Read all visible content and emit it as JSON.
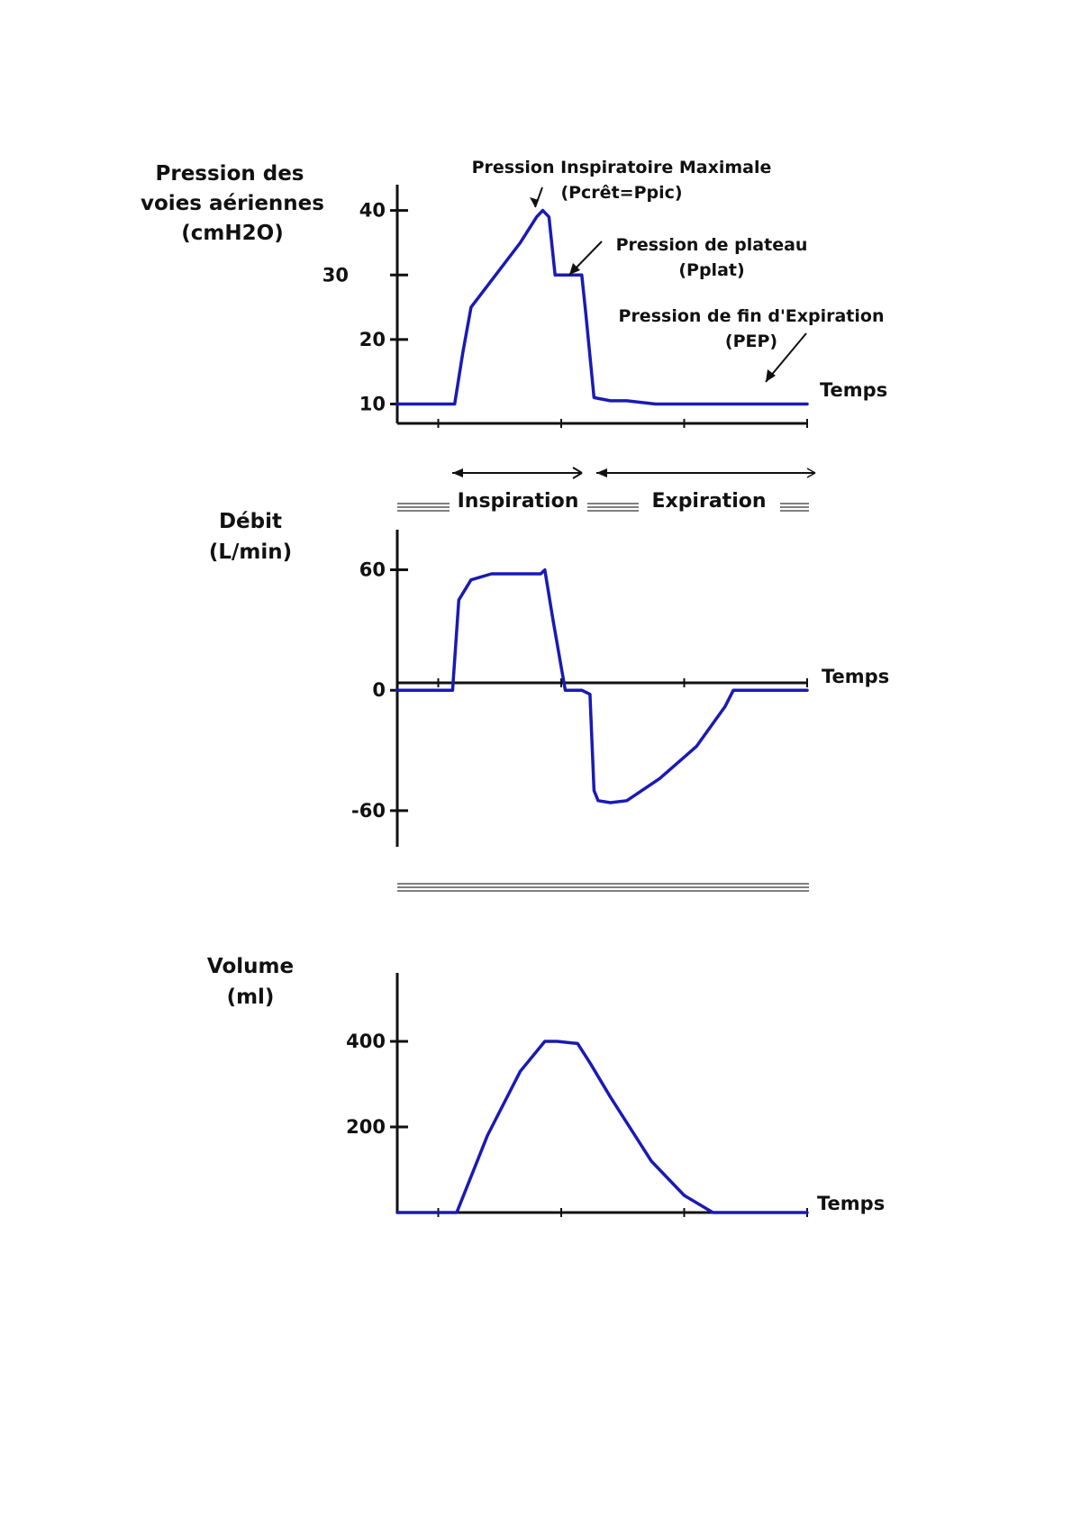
{
  "chart_data": [
    {
      "type": "line",
      "ylabel_lines": [
        "Pression des",
        "voies aériennes",
        "(cmH2O)"
      ],
      "xlabel": "Temps",
      "yticks": [
        10,
        20,
        30,
        40
      ],
      "ylim": [
        7,
        44
      ],
      "xlim": [
        0,
        10
      ],
      "series_color": "#1a1ab4",
      "series": [
        {
          "x": [
            0,
            1.4,
            1.6,
            1.8,
            2.4,
            3.0,
            3.4,
            3.55,
            3.7,
            3.85,
            4.5,
            4.6,
            4.8,
            5.2,
            5.6,
            6.3,
            7.0,
            8.5,
            10
          ],
          "y": [
            10,
            10,
            18,
            25,
            30,
            35,
            39,
            40,
            39,
            30,
            30,
            24,
            11,
            10.5,
            10.5,
            10,
            10,
            10,
            10
          ]
        }
      ],
      "annotations": [
        {
          "lines": [
            "Pression Inspiratoire Maximale",
            "(Pcrêt=Ppic)"
          ],
          "x": 3.45,
          "y": 40
        },
        {
          "lines": [
            "Pression de plateau",
            "(Pplat)"
          ],
          "x": 4.2,
          "y": 30
        },
        {
          "lines": [
            "Pression de fin d'Expiration",
            "(PEP)"
          ],
          "x": 9.0,
          "y": 10
        }
      ]
    },
    {
      "type": "line",
      "ylabel_lines": [
        "Débit",
        "(L/min)"
      ],
      "xlabel": "Temps",
      "yticks": [
        -60,
        0,
        60
      ],
      "ylim": [
        -78,
        80
      ],
      "xlim": [
        0,
        10
      ],
      "series_color": "#1a1ab4",
      "series": [
        {
          "x": [
            0,
            1.35,
            1.5,
            1.8,
            2.3,
            3.2,
            3.5,
            3.6,
            3.8,
            4.1,
            4.5,
            4.7,
            4.8,
            4.9,
            5.2,
            5.6,
            6.4,
            7.3,
            8.0,
            8.2,
            10
          ],
          "y": [
            0,
            0,
            45,
            55,
            58,
            58,
            58,
            60,
            35,
            0,
            0,
            -2,
            -50,
            -55,
            -56,
            -55,
            -44,
            -28,
            -8,
            0,
            0
          ]
        }
      ],
      "phases": {
        "inspiration": "Inspiration",
        "expiration": "Expiration"
      }
    },
    {
      "type": "line",
      "ylabel_lines": [
        "Volume",
        "(ml)"
      ],
      "xlabel": "Temps",
      "yticks": [
        200,
        400
      ],
      "ylim": [
        0,
        560
      ],
      "xlim": [
        0,
        10
      ],
      "series_color": "#1a1ab4",
      "series": [
        {
          "x": [
            0,
            1.45,
            2.2,
            3.0,
            3.6,
            3.9,
            4.4,
            4.7,
            5.2,
            6.2,
            7.0,
            7.7,
            10
          ],
          "y": [
            0,
            0,
            180,
            330,
            400,
            400,
            395,
            350,
            270,
            120,
            40,
            0,
            0
          ]
        }
      ]
    }
  ]
}
